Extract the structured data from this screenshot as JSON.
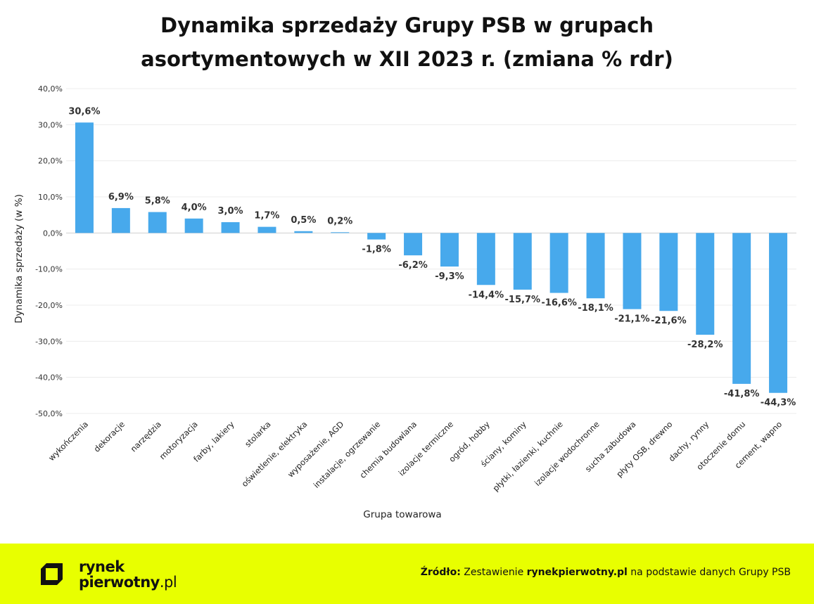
{
  "title_lines": [
    "Dynamika sprzedaży Grupy PSB w grupach",
    "asortymentowych w XII 2023 r. (zmiana % rdr)"
  ],
  "chart_data": {
    "type": "bar",
    "title": "Dynamika sprzedaży Grupy PSB w grupach asortymentowych w XII 2023 r. (zmiana % rdr)",
    "xlabel": "Grupa towarowa",
    "ylabel": "Dynamika sprzedaży (w %)",
    "ylim": [
      -50,
      40
    ],
    "yticks": [
      40,
      30,
      20,
      10,
      0,
      -10,
      -20,
      -30,
      -40,
      -50
    ],
    "ytick_labels": [
      "40,0%",
      "30,0%",
      "20,0%",
      "10,0%",
      "0,0%",
      "-10,0%",
      "-20,0%",
      "-30,0%",
      "-40,0%",
      "-50,0%"
    ],
    "grid": true,
    "bar_color": "#47a9ec",
    "categories": [
      "wykończenia",
      "dekoracje",
      "narzędzia",
      "motoryzacja",
      "farby, lakiery",
      "stolarka",
      "oświetlenie, elektryka",
      "wyposażenie, AGD",
      "instalacje, ogrzewanie",
      "chemia budowlana",
      "izolacje termiczne",
      "ogród, hobby",
      "ściany, kominy",
      "płytki, łazienki, kuchnie",
      "izolacje wodochronne",
      "sucha zabudowa",
      "płyty OSB, drewno",
      "dachy, rynny",
      "otoczenie domu",
      "cement, wapno"
    ],
    "values": [
      30.6,
      6.9,
      5.8,
      4.0,
      3.0,
      1.7,
      0.5,
      0.2,
      -1.8,
      -6.2,
      -9.3,
      -14.4,
      -15.7,
      -16.6,
      -18.1,
      -21.1,
      -21.6,
      -28.2,
      -41.8,
      -44.3
    ],
    "data_labels": [
      "30,6%",
      "6,9%",
      "5,8%",
      "4,0%",
      "3,0%",
      "1,7%",
      "0,5%",
      "0,2%",
      "-1,8%",
      "-6,2%",
      "-9,3%",
      "-14,4%",
      "-15,7%",
      "-16,6%",
      "-18,1%",
      "-21,1%",
      "-21,6%",
      "-28,2%",
      "-41,8%",
      "-44,3%"
    ]
  },
  "footer": {
    "logo_line1": "rynek",
    "logo_line2": "pierwotny",
    "logo_tld": ".pl",
    "source_label": "Źródło:",
    "source_text_1": " Zestawienie ",
    "source_bold": "rynekpierwotny.pl",
    "source_text_2": " na podstawie danych Grupy PSB",
    "background_color": "#e8ff00"
  }
}
